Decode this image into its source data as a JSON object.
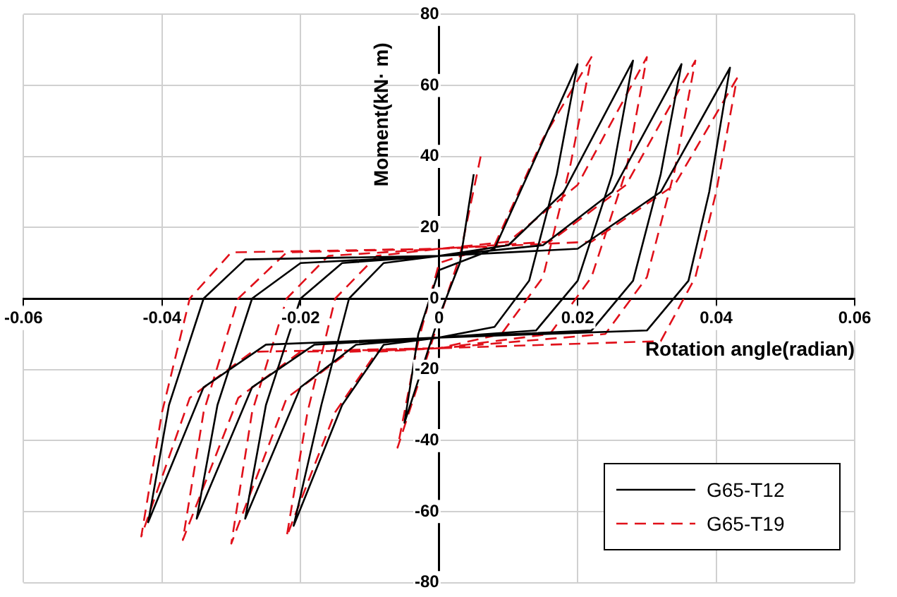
{
  "chart_data": {
    "type": "line",
    "xlabel": "Rotation angle(radian)",
    "ylabel": "Moment(kN· m)",
    "xlim": [
      -0.06,
      0.06
    ],
    "xticks": [
      -0.06,
      -0.04,
      -0.02,
      0,
      0.02,
      0.04,
      0.06
    ],
    "ylim": [
      -80,
      80
    ],
    "yticks": [
      -80,
      -60,
      -40,
      -20,
      0,
      20,
      40,
      60,
      80
    ],
    "grid": true,
    "legend": "bottom right",
    "marker": "none",
    "series": [
      {
        "name": "G65-T12",
        "color": "#000000",
        "line_style": "solid",
        "x": [
          0.005,
          0.003,
          0,
          -0.005,
          -0.003,
          0,
          0.008,
          0.014,
          0.02,
          0.017,
          0.013,
          0.008,
          0,
          -0.008,
          -0.014,
          -0.021,
          -0.017,
          -0.013,
          -0.008,
          0,
          0.01,
          0.018,
          0.028,
          0.025,
          0.02,
          0.014,
          0,
          -0.012,
          -0.02,
          -0.028,
          -0.025,
          -0.02,
          -0.014,
          0,
          0.015,
          0.025,
          0.035,
          0.032,
          0.028,
          0.022,
          0,
          -0.018,
          -0.027,
          -0.035,
          -0.032,
          -0.027,
          -0.02,
          0,
          0.02,
          0.032,
          0.042,
          0.039,
          0.036,
          0.03,
          0,
          -0.025,
          -0.034,
          -0.042,
          -0.039,
          -0.034,
          -0.028,
          0
        ],
        "values": [
          35,
          10,
          -5,
          -35,
          -10,
          8,
          14,
          40,
          66,
          35,
          5,
          -8,
          -11,
          -13,
          -30,
          -64,
          -30,
          0,
          10,
          12,
          15,
          30,
          67,
          35,
          5,
          -9,
          -11,
          -13,
          -25,
          -62,
          -30,
          0,
          10,
          12,
          15,
          30,
          66,
          35,
          5,
          -9,
          -11,
          -13,
          -25,
          -62,
          -30,
          0,
          10,
          12,
          14,
          30,
          65,
          30,
          5,
          -9,
          -11,
          -13,
          -25,
          -63,
          -30,
          0,
          11,
          12
        ]
      },
      {
        "name": "G65-T19",
        "color": "#e0101a",
        "line_style": "dashed",
        "x": [
          0.006,
          0.003,
          0,
          -0.006,
          -0.003,
          0,
          0.008,
          0.015,
          0.022,
          0.019,
          0.015,
          0.009,
          0,
          -0.009,
          -0.015,
          -0.022,
          -0.019,
          -0.015,
          -0.009,
          0,
          0.01,
          0.02,
          0.03,
          0.027,
          0.022,
          0.016,
          0,
          -0.013,
          -0.022,
          -0.03,
          -0.027,
          -0.022,
          -0.016,
          0,
          0.016,
          0.027,
          0.037,
          0.034,
          0.03,
          0.024,
          0,
          -0.02,
          -0.029,
          -0.037,
          -0.034,
          -0.029,
          -0.022,
          0,
          0.022,
          0.034,
          0.043,
          0.04,
          0.037,
          0.032,
          0,
          -0.027,
          -0.036,
          -0.043,
          -0.04,
          -0.036,
          -0.03,
          0
        ],
        "values": [
          40,
          12,
          -6,
          -42,
          -12,
          10,
          15,
          45,
          68,
          38,
          6,
          -10,
          -14,
          -15,
          -32,
          -67,
          -32,
          0,
          12,
          14,
          16,
          32,
          68,
          36,
          6,
          -10,
          -14,
          -15,
          -28,
          -69,
          -32,
          0,
          12,
          14,
          16,
          32,
          67,
          36,
          6,
          -10,
          -14,
          -15,
          -28,
          -68,
          -32,
          0,
          13,
          14,
          16,
          32,
          62,
          30,
          6,
          -12,
          -14,
          -15,
          -28,
          -67,
          -32,
          0,
          13,
          14
        ]
      }
    ]
  }
}
